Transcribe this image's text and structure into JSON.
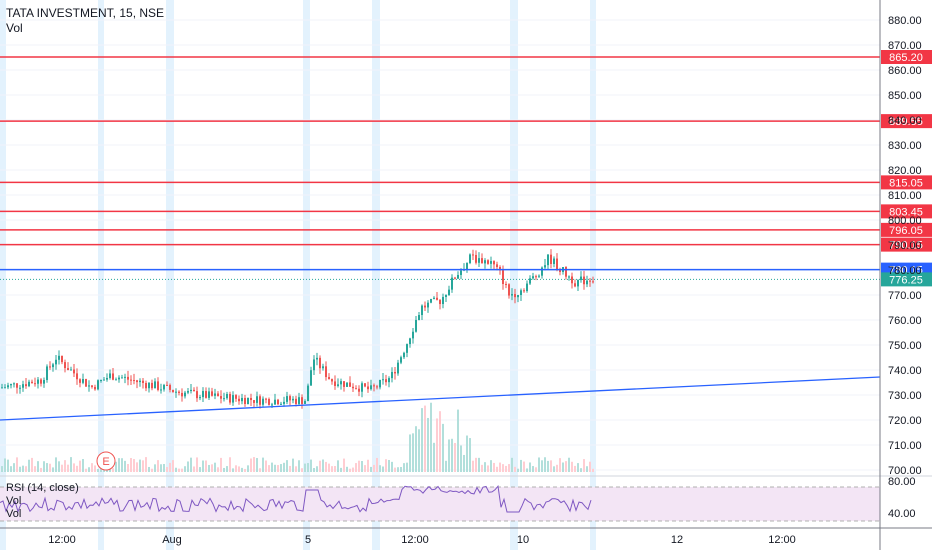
{
  "header": {
    "symbol_line": "TATA INVESTMENT, 15, NSE",
    "volume_label": "Vol"
  },
  "rsi_panel": {
    "label": "RSI (14, close)",
    "vol_label_1": "Vol",
    "vol_label_2": "Vol",
    "upper_level": "80.00",
    "lower_level": "40.00"
  },
  "price_axis": {
    "ticks": [
      "880.00",
      "870.00",
      "860.00",
      "850.00",
      "840.00",
      "830.00",
      "820.00",
      "810.00",
      "800.00",
      "790.00",
      "780.00",
      "770.00",
      "760.00",
      "750.00",
      "740.00",
      "730.00",
      "720.00",
      "710.00",
      "700.00"
    ]
  },
  "time_axis": {
    "ticks": [
      "12:00",
      "Aug",
      "5",
      "12:00",
      "10",
      "12",
      "12:00"
    ]
  },
  "horizontal_levels": [
    {
      "label": "865.20",
      "value": 865.2,
      "color": "#f23645"
    },
    {
      "label": "839.55",
      "value": 839.55,
      "color": "#f23645"
    },
    {
      "label": "815.05",
      "value": 815.05,
      "color": "#f23645"
    },
    {
      "label": "803.45",
      "value": 803.45,
      "color": "#f23645"
    },
    {
      "label": "796.05",
      "value": 796.05,
      "color": "#f23645"
    },
    {
      "label": "790.15",
      "value": 790.15,
      "color": "#f23645"
    },
    {
      "label": "780.15",
      "value": 780.15,
      "color": "#2962ff"
    }
  ],
  "last_price": {
    "label": "776.25",
    "value": 776.25,
    "color": "#26a69a"
  },
  "earnings_marker": "E",
  "colors": {
    "up": "#26a69a",
    "down": "#ef5350",
    "trendline": "#2962ff",
    "rsi_fill": "#f3e5f5",
    "rsi_line": "#7e57c2",
    "session_band": "#e3f2fd"
  }
}
